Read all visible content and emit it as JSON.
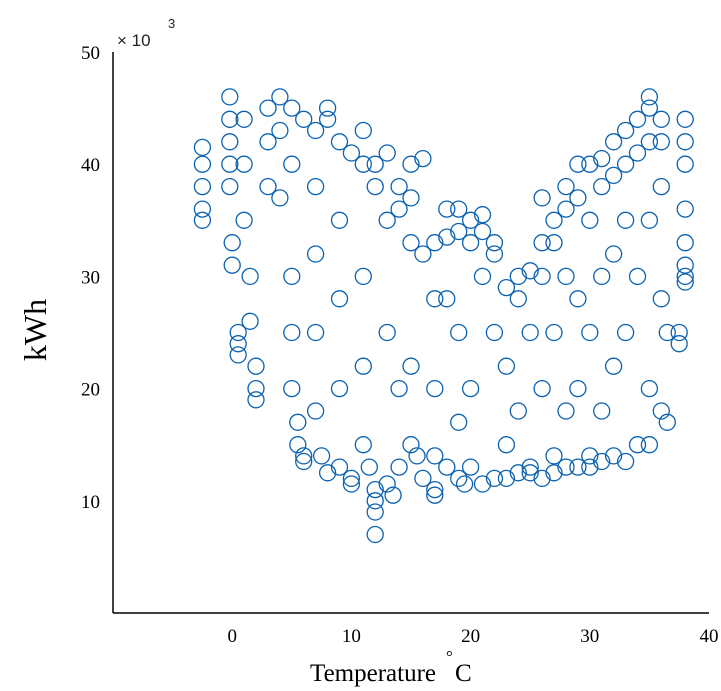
{
  "chart_data": {
    "type": "scatter",
    "title": "",
    "xlabel": "Temperature",
    "xlabel_unit_degree": "°",
    "xlabel_unit": "C",
    "ylabel": "kWh",
    "y_multiplier_base": "× 10",
    "y_multiplier_exponent": "3",
    "xlim": [
      -10,
      40
    ],
    "ylim": [
      0,
      50
    ],
    "x_ticks": [
      0,
      10,
      20,
      30,
      40
    ],
    "y_ticks": [
      10,
      20,
      30,
      40,
      50
    ],
    "grid": false,
    "marker": "open-circle",
    "color": "#0b62b0",
    "series": [
      {
        "points": [
          [
            -2.5,
            41.5
          ],
          [
            -2.5,
            40
          ],
          [
            -2.5,
            38
          ],
          [
            -2.5,
            36
          ],
          [
            -2.5,
            35
          ],
          [
            -0.2,
            46
          ],
          [
            -0.2,
            44
          ],
          [
            -0.2,
            42
          ],
          [
            -0.2,
            40
          ],
          [
            -0.2,
            38
          ],
          [
            0,
            33
          ],
          [
            0,
            31
          ],
          [
            0.5,
            25
          ],
          [
            0.5,
            24
          ],
          [
            0.5,
            23
          ],
          [
            1,
            44
          ],
          [
            1,
            40
          ],
          [
            1,
            35
          ],
          [
            1.5,
            30
          ],
          [
            1.5,
            26
          ],
          [
            2,
            22
          ],
          [
            2,
            20
          ],
          [
            2,
            19
          ],
          [
            3,
            45
          ],
          [
            3,
            42
          ],
          [
            3,
            38
          ],
          [
            4,
            46
          ],
          [
            4,
            43
          ],
          [
            4,
            37
          ],
          [
            5,
            45
          ],
          [
            5,
            40
          ],
          [
            5,
            30
          ],
          [
            5,
            25
          ],
          [
            5,
            20
          ],
          [
            5.5,
            17
          ],
          [
            5.5,
            15
          ],
          [
            6,
            44
          ],
          [
            6,
            14
          ],
          [
            6,
            13.5
          ],
          [
            7,
            43
          ],
          [
            7,
            38
          ],
          [
            7,
            32
          ],
          [
            7,
            25
          ],
          [
            7,
            18
          ],
          [
            7.5,
            14
          ],
          [
            8,
            45
          ],
          [
            8,
            44
          ],
          [
            8,
            12.5
          ],
          [
            9,
            42
          ],
          [
            9,
            35
          ],
          [
            9,
            28
          ],
          [
            9,
            20
          ],
          [
            9,
            13
          ],
          [
            10,
            41
          ],
          [
            10,
            12
          ],
          [
            10,
            11.5
          ],
          [
            11,
            43
          ],
          [
            11,
            40
          ],
          [
            11,
            30
          ],
          [
            11,
            22
          ],
          [
            11,
            15
          ],
          [
            11.5,
            13
          ],
          [
            12,
            40
          ],
          [
            12,
            38
          ],
          [
            12,
            11
          ],
          [
            12,
            10
          ],
          [
            12,
            9
          ],
          [
            12,
            7
          ],
          [
            13,
            41
          ],
          [
            13,
            35
          ],
          [
            13,
            25
          ],
          [
            13,
            11.5
          ],
          [
            13.5,
            10.5
          ],
          [
            14,
            38
          ],
          [
            14,
            36
          ],
          [
            14,
            20
          ],
          [
            14,
            13
          ],
          [
            15,
            40
          ],
          [
            15,
            37
          ],
          [
            15,
            33
          ],
          [
            15,
            22
          ],
          [
            15,
            15
          ],
          [
            15.5,
            14
          ],
          [
            16,
            40.5
          ],
          [
            16,
            32
          ],
          [
            16,
            12
          ],
          [
            17,
            33
          ],
          [
            17,
            28
          ],
          [
            17,
            20
          ],
          [
            17,
            14
          ],
          [
            17,
            11
          ],
          [
            17,
            10.5
          ],
          [
            18,
            36
          ],
          [
            18,
            33.5
          ],
          [
            18,
            28
          ],
          [
            18,
            13
          ],
          [
            19,
            36
          ],
          [
            19,
            34
          ],
          [
            19,
            25
          ],
          [
            19,
            17
          ],
          [
            19,
            12
          ],
          [
            19.5,
            11.5
          ],
          [
            20,
            35
          ],
          [
            20,
            33
          ],
          [
            20,
            20
          ],
          [
            20,
            13
          ],
          [
            21,
            35.5
          ],
          [
            21,
            34
          ],
          [
            21,
            30
          ],
          [
            21,
            11.5
          ],
          [
            22,
            33
          ],
          [
            22,
            32
          ],
          [
            22,
            25
          ],
          [
            22,
            12
          ],
          [
            23,
            29
          ],
          [
            23,
            22
          ],
          [
            23,
            15
          ],
          [
            23,
            12
          ],
          [
            24,
            30
          ],
          [
            24,
            28
          ],
          [
            24,
            18
          ],
          [
            24,
            12.5
          ],
          [
            25,
            30.5
          ],
          [
            25,
            25
          ],
          [
            25,
            13
          ],
          [
            25,
            12.5
          ],
          [
            26,
            37
          ],
          [
            26,
            33
          ],
          [
            26,
            30
          ],
          [
            26,
            20
          ],
          [
            26,
            12
          ],
          [
            27,
            35
          ],
          [
            27,
            33
          ],
          [
            27,
            25
          ],
          [
            27,
            14
          ],
          [
            27,
            12.5
          ],
          [
            28,
            38
          ],
          [
            28,
            36
          ],
          [
            28,
            30
          ],
          [
            28,
            18
          ],
          [
            28,
            13
          ],
          [
            29,
            40
          ],
          [
            29,
            37
          ],
          [
            29,
            28
          ],
          [
            29,
            20
          ],
          [
            29,
            13
          ],
          [
            30,
            40
          ],
          [
            30,
            35
          ],
          [
            30,
            25
          ],
          [
            30,
            14
          ],
          [
            30,
            13
          ],
          [
            31,
            40.5
          ],
          [
            31,
            38
          ],
          [
            31,
            30
          ],
          [
            31,
            18
          ],
          [
            31,
            13.5
          ],
          [
            32,
            42
          ],
          [
            32,
            39
          ],
          [
            32,
            32
          ],
          [
            32,
            22
          ],
          [
            32,
            14
          ],
          [
            33,
            43
          ],
          [
            33,
            40
          ],
          [
            33,
            35
          ],
          [
            33,
            25
          ],
          [
            33,
            13.5
          ],
          [
            34,
            44
          ],
          [
            34,
            41
          ],
          [
            34,
            30
          ],
          [
            34,
            15
          ],
          [
            35,
            46
          ],
          [
            35,
            45
          ],
          [
            35,
            42
          ],
          [
            35,
            35
          ],
          [
            35,
            20
          ],
          [
            35,
            15
          ],
          [
            36,
            44
          ],
          [
            36,
            42
          ],
          [
            36,
            38
          ],
          [
            36,
            28
          ],
          [
            36,
            18
          ],
          [
            36.5,
            25
          ],
          [
            36.5,
            17
          ],
          [
            37.5,
            25
          ],
          [
            37.5,
            24
          ],
          [
            38,
            44
          ],
          [
            38,
            42
          ],
          [
            38,
            40
          ],
          [
            38,
            36
          ],
          [
            38,
            33
          ],
          [
            38,
            31
          ],
          [
            38,
            30
          ],
          [
            38,
            29.5
          ]
        ]
      }
    ]
  }
}
